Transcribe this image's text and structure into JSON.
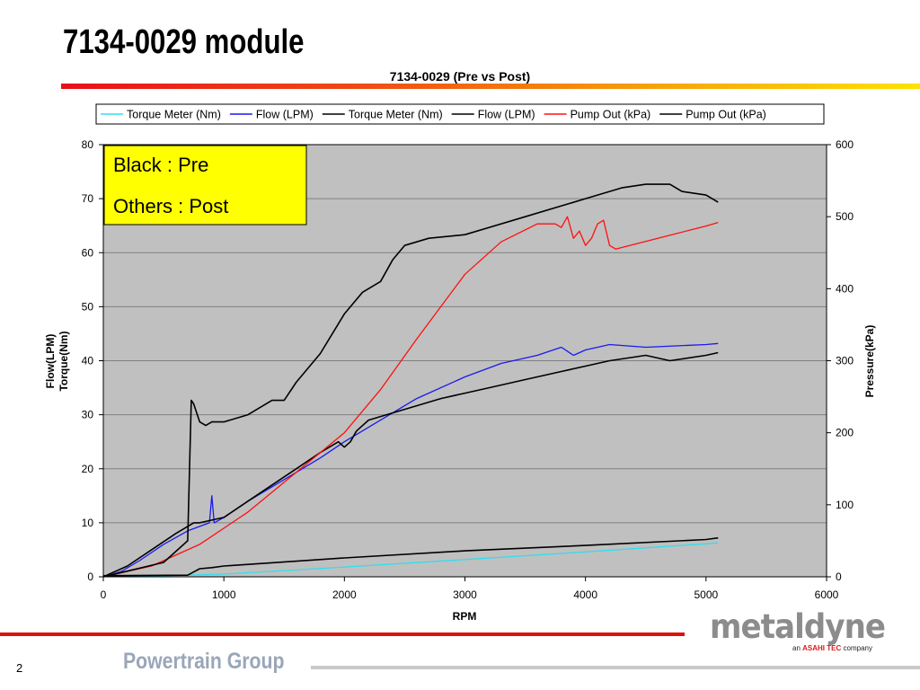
{
  "slide": {
    "title": "7134-0029 module",
    "footer_text": "Powertrain Group",
    "page_number": "2",
    "logo_text": "metaldyne",
    "logo_sub_prefix": "an",
    "logo_sub_brand": "ASAHI TEC",
    "logo_sub_suffix": "company"
  },
  "colors": {
    "plot_background": "#c0c0c0",
    "annotation_background": "#ffff00",
    "cyan": "#33ddee",
    "blue": "#1a1aee",
    "red": "#ff1010",
    "black": "#000000"
  },
  "chart_data": {
    "type": "line",
    "title": "7134-0029 (Pre vs Post)",
    "xlabel": "RPM",
    "ylabel_left": [
      "Flow(LPM)",
      "Torque(Nm)"
    ],
    "ylabel_right": "Pressure(kPa)",
    "xlim": [
      0,
      6000
    ],
    "ylim_left": [
      0,
      80
    ],
    "ylim_right": [
      0,
      600
    ],
    "x_ticks": [
      "0",
      "1000",
      "2000",
      "3000",
      "4000",
      "5000",
      "6000"
    ],
    "y_ticks_left": [
      "0",
      "10",
      "20",
      "30",
      "40",
      "50",
      "60",
      "70",
      "80"
    ],
    "y_ticks_right": [
      "0",
      "100",
      "200",
      "300",
      "400",
      "500",
      "600"
    ],
    "grid": "horizontal",
    "legend_position": "top",
    "annotation": [
      "Black : Pre",
      "Others : Post"
    ],
    "series": [
      {
        "name": "Torque Meter (Nm)",
        "color": "cyan",
        "axis": "left",
        "x": [
          0,
          500,
          1000,
          2000,
          3000,
          4000,
          5000,
          5100
        ],
        "y": [
          0,
          0.2,
          0.5,
          1.8,
          3.2,
          4.6,
          6.1,
          6.3
        ]
      },
      {
        "name": "Flow (LPM)",
        "color": "blue",
        "axis": "left",
        "x": [
          0,
          150,
          300,
          500,
          700,
          880,
          900,
          920,
          1000,
          1200,
          1500,
          1800,
          2000,
          2300,
          2600,
          3000,
          3300,
          3600,
          3800,
          3900,
          4000,
          4200,
          4500,
          5000,
          5100
        ],
        "y": [
          0,
          1,
          3,
          6,
          8.5,
          10,
          15,
          10,
          11,
          14,
          18,
          22,
          25,
          29,
          33,
          37,
          39.5,
          41,
          42.5,
          41,
          42,
          43,
          42.5,
          43,
          43.2
        ]
      },
      {
        "name": "Torque Meter (Nm)",
        "color": "black",
        "axis": "left",
        "x": [
          0,
          700,
          800,
          900,
          1000,
          2000,
          3000,
          4000,
          5000,
          5100
        ],
        "y": [
          0.2,
          0.3,
          1.5,
          1.7,
          2.0,
          3.5,
          4.8,
          5.8,
          6.9,
          7.2
        ]
      },
      {
        "name": "Flow (LPM)",
        "color": "black",
        "axis": "left",
        "x": [
          0,
          200,
          400,
          600,
          750,
          800,
          1000,
          1200,
          1400,
          1600,
          1800,
          1950,
          2000,
          2050,
          2100,
          2200,
          2500,
          2800,
          3000,
          3200,
          3500,
          3800,
          4000,
          4200,
          4500,
          4600,
          4700,
          5000,
          5100
        ],
        "y": [
          0,
          2,
          5,
          8,
          10,
          10,
          11,
          14,
          17,
          20,
          23,
          25,
          24,
          25,
          27,
          29,
          31,
          33,
          34,
          35,
          36.5,
          38,
          39,
          40,
          41,
          40.5,
          40,
          41,
          41.5
        ]
      },
      {
        "name": "Pump Out (kPa)",
        "color": "red",
        "axis": "right",
        "x": [
          0,
          400,
          800,
          1200,
          1600,
          2000,
          2300,
          2600,
          3000,
          3300,
          3600,
          3750,
          3800,
          3850,
          3900,
          3950,
          4000,
          4050,
          4100,
          4150,
          4200,
          4250,
          4600,
          5000,
          5100
        ],
        "y": [
          0,
          15,
          45,
          90,
          145,
          200,
          260,
          330,
          420,
          465,
          490,
          490,
          485,
          500,
          470,
          480,
          460,
          470,
          490,
          495,
          460,
          455,
          470,
          487,
          492
        ]
      },
      {
        "name": "Pump Out (kPa)",
        "color": "black",
        "axis": "right",
        "x": [
          0,
          500,
          700,
          730,
          750,
          800,
          850,
          900,
          1000,
          1100,
          1200,
          1300,
          1400,
          1500,
          1600,
          1800,
          2000,
          2150,
          2300,
          2400,
          2500,
          2700,
          3000,
          3500,
          4000,
          4300,
          4500,
          4700,
          4800,
          5000,
          5100
        ],
        "y": [
          0,
          20,
          50,
          245,
          240,
          215,
          210,
          215,
          215,
          220,
          225,
          235,
          245,
          245,
          270,
          310,
          365,
          395,
          410,
          440,
          460,
          470,
          475,
          500,
          525,
          540,
          545,
          545,
          535,
          530,
          520
        ]
      }
    ]
  }
}
